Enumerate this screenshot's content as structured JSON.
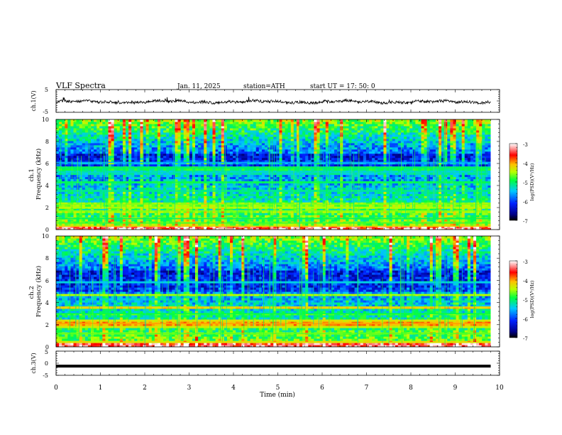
{
  "header": {
    "title": "VLF  Spectra",
    "date": "Jan. 11, 2025",
    "station": "station=ATH",
    "start": "start  UT  =   17: 50: 0"
  },
  "chart_data": [
    {
      "type": "line",
      "name": "ch1-waveform",
      "ylabel": "ch.1(V)",
      "ylim": [
        -5,
        5
      ],
      "yticks": [
        "5",
        "-5"
      ],
      "xlim": [
        0,
        10
      ],
      "trace_color": "#000000",
      "trace_end_min": 9.8,
      "baseline_v": -0.4,
      "noise_amplitude_v": 0.6
    },
    {
      "type": "heatmap",
      "name": "ch1-spectrogram",
      "ylabel": "ch.1\nFrequency  (kHz)",
      "ylim": [
        0,
        10
      ],
      "yticks": [
        "0",
        "2",
        "4",
        "6",
        "8",
        "10"
      ],
      "xlim": [
        0,
        10
      ],
      "data_end_min": 9.8,
      "colorbar": {
        "label": "log(PSD)(V²/Hz)",
        "range": [
          -7,
          -3
        ],
        "ticks": [
          "-7",
          "-6",
          "-5",
          "-4",
          "-3"
        ]
      },
      "bands_khz": [
        {
          "f": 0.3,
          "level": -4.2
        },
        {
          "f": 0.6,
          "level": -4.8
        },
        {
          "f": 1.0,
          "level": -5.0
        },
        {
          "f": 1.7,
          "level": -4.6
        },
        {
          "f": 2.0,
          "level": -4.5
        },
        {
          "f": 2.3,
          "level": -4.6
        },
        {
          "f": 3.5,
          "level": -5.2
        },
        {
          "f": 4.3,
          "level": -5.0
        },
        {
          "f": 5.2,
          "level": -5.3
        },
        {
          "f": 5.6,
          "level": -5.0
        },
        {
          "f": 6.1,
          "level": -5.6
        }
      ]
    },
    {
      "type": "heatmap",
      "name": "ch2-spectrogram",
      "ylabel": "ch.2\nFrequency  (kHz)",
      "ylim": [
        0,
        10
      ],
      "yticks": [
        "0",
        "2",
        "4",
        "6",
        "8",
        "10"
      ],
      "xlim": [
        0,
        10
      ],
      "data_end_min": 9.8,
      "colorbar": {
        "label": "log(PSD)(V²/Hz)",
        "range": [
          -7,
          -3
        ],
        "ticks": [
          "-7",
          "-6",
          "-5",
          "-4",
          "-3"
        ]
      },
      "bands_khz": [
        {
          "f": 0.4,
          "level": -4.3
        },
        {
          "f": 1.2,
          "level": -4.7
        },
        {
          "f": 1.8,
          "level": -4.4
        },
        {
          "f": 2.1,
          "level": -4.0
        },
        {
          "f": 2.4,
          "level": -4.3
        },
        {
          "f": 3.0,
          "level": -4.9
        },
        {
          "f": 3.6,
          "level": -4.2
        },
        {
          "f": 4.7,
          "level": -4.5
        },
        {
          "f": 5.8,
          "level": -5.4
        }
      ]
    },
    {
      "type": "line",
      "name": "ch3-waveform",
      "ylabel": "ch.3(V)",
      "ylim": [
        -5,
        5
      ],
      "yticks": [
        "5",
        "0",
        "-5"
      ],
      "xlim": [
        0,
        10
      ],
      "xlabel": "Time  (min)",
      "xticks": [
        "0",
        "1",
        "2",
        "3",
        "4",
        "5",
        "6",
        "7",
        "8",
        "9",
        "10"
      ],
      "trace_color": "#000000",
      "trace_end_min": 9.8,
      "baseline_v": -1.2
    }
  ]
}
